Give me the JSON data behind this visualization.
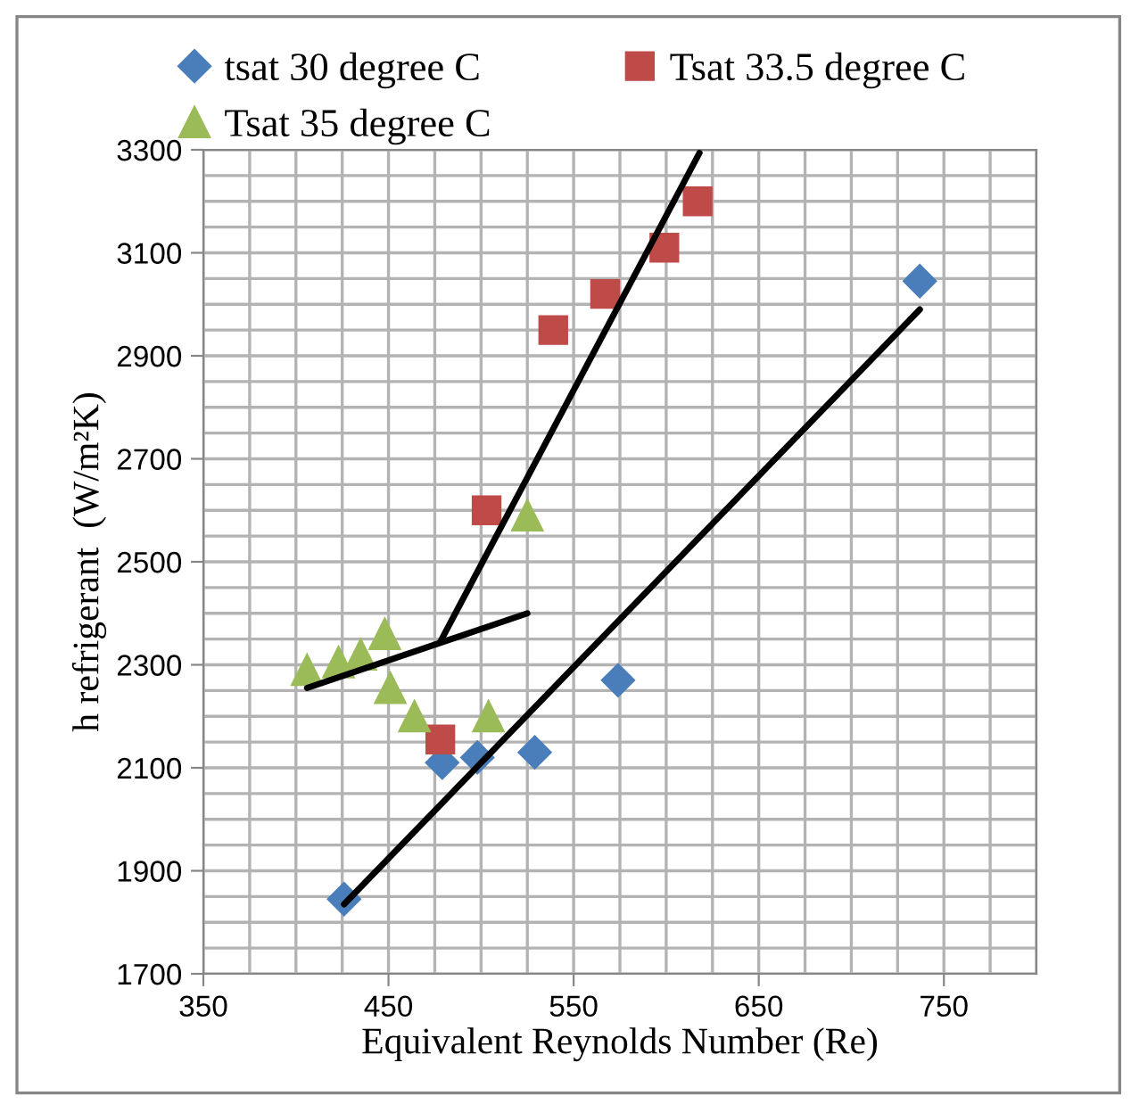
{
  "chart_data": {
    "type": "scatter",
    "xlabel": "Equivalent Reynolds Number (Re)",
    "ylabel": "h refrigerant  (W/m²K)",
    "xlim": [
      350,
      800
    ],
    "ylim": [
      1700,
      3300
    ],
    "xticks": [
      350,
      {
        "value": 375,
        "label": null
      },
      {
        "value": 400,
        "label": null
      },
      {
        "value": 425,
        "label": null
      },
      450,
      {
        "value": 475,
        "label": null
      },
      {
        "value": 500,
        "label": null
      },
      {
        "value": 525,
        "label": null
      },
      550,
      {
        "value": 575,
        "label": null
      },
      {
        "value": 600,
        "label": null
      },
      {
        "value": 625,
        "label": null
      },
      650,
      {
        "value": 675,
        "label": null
      },
      {
        "value": 700,
        "label": null
      },
      {
        "value": 725,
        "label": null
      },
      750,
      {
        "value": 775,
        "label": null
      },
      {
        "value": 800,
        "label": null
      }
    ],
    "yticks": [
      1700,
      {
        "value": 1750,
        "label": null
      },
      {
        "value": 1800,
        "label": null
      },
      {
        "value": 1850,
        "label": null
      },
      1900,
      {
        "value": 1950,
        "label": null
      },
      {
        "value": 2000,
        "label": null
      },
      {
        "value": 2050,
        "label": null
      },
      2100,
      {
        "value": 2150,
        "label": null
      },
      {
        "value": 2200,
        "label": null
      },
      {
        "value": 2250,
        "label": null
      },
      2300,
      {
        "value": 2350,
        "label": null
      },
      {
        "value": 2400,
        "label": null
      },
      {
        "value": 2450,
        "label": null
      },
      2500,
      {
        "value": 2550,
        "label": null
      },
      {
        "value": 2600,
        "label": null
      },
      {
        "value": 2650,
        "label": null
      },
      2700,
      {
        "value": 2750,
        "label": null
      },
      {
        "value": 2800,
        "label": null
      },
      {
        "value": 2850,
        "label": null
      },
      2900,
      {
        "value": 2950,
        "label": null
      },
      {
        "value": 3000,
        "label": null
      },
      {
        "value": 3050,
        "label": null
      },
      3100,
      {
        "value": 3150,
        "label": null
      },
      {
        "value": 3200,
        "label": null
      },
      {
        "value": 3250,
        "label": null
      },
      3300
    ],
    "grid": true,
    "legend": "top",
    "series": [
      {
        "name": "tsat 30 degree C",
        "color": "#4a7ebb",
        "marker": "diamond",
        "x": [
          737,
          574,
          529,
          498,
          479,
          426
        ],
        "values": [
          3045,
          2270,
          2130,
          2120,
          2110,
          1845
        ]
      },
      {
        "name": "Tsat 33.5 degree C",
        "color": "#be4b48",
        "marker": "square",
        "x": [
          617,
          599,
          567,
          539,
          503,
          478
        ],
        "values": [
          3200,
          3110,
          3020,
          2950,
          2600,
          2155
        ]
      },
      {
        "name": "Tsat 35 degree C",
        "color": "#9bbb59",
        "marker": "triangle",
        "x": [
          525,
          406,
          423,
          435,
          448,
          451,
          464,
          504
        ],
        "values": [
          2590,
          2290,
          2305,
          2320,
          2360,
          2255,
          2200,
          2200
        ]
      },
      {
        "type": "line",
        "color": "#000000",
        "marker": "none",
        "x": [
          426,
          737
        ],
        "values": [
          1835,
          2990
        ]
      },
      {
        "type": "line",
        "color": "#000000",
        "marker": "none",
        "x": [
          478,
          618
        ],
        "values": [
          2345,
          3294
        ]
      },
      {
        "type": "line",
        "color": "#000000",
        "marker": "none",
        "x": [
          406,
          525
        ],
        "values": [
          2255,
          2400
        ]
      }
    ]
  }
}
